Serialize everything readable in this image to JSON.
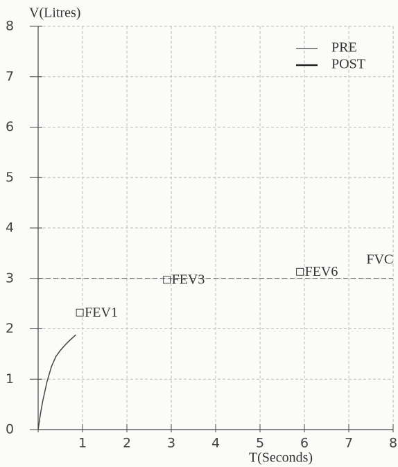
{
  "chart_data": {
    "type": "line",
    "x_label": "T(Seconds)",
    "y_label": "V(Litres)",
    "xlim": [
      0,
      8
    ],
    "ylim": [
      0,
      8
    ],
    "xticks": [
      0,
      1,
      2,
      3,
      4,
      5,
      6,
      7,
      8
    ],
    "yticks": [
      0,
      1,
      2,
      3,
      4,
      5,
      6,
      7,
      8
    ],
    "grid": true,
    "legend": "upper right",
    "series": [
      {
        "name": "PRE",
        "color": "#444444",
        "x": [
          0,
          0.05,
          0.1,
          0.2,
          0.3,
          0.4,
          0.5,
          0.6,
          0.7,
          0.85
        ],
        "values": [
          0,
          0.3,
          0.55,
          0.95,
          1.25,
          1.45,
          1.57,
          1.67,
          1.76,
          1.88
        ]
      },
      {
        "name": "POST",
        "color": "#222222",
        "x": [],
        "values": []
      }
    ],
    "reference_line": {
      "label": "FVC",
      "value": 3
    },
    "annotations": [
      {
        "text": "FEV1",
        "x": 0.94,
        "y": 2.32
      },
      {
        "text": "FEV3",
        "x": 2.9,
        "y": 2.97
      },
      {
        "text": "FEV6",
        "x": 5.9,
        "y": 3.13
      }
    ]
  }
}
